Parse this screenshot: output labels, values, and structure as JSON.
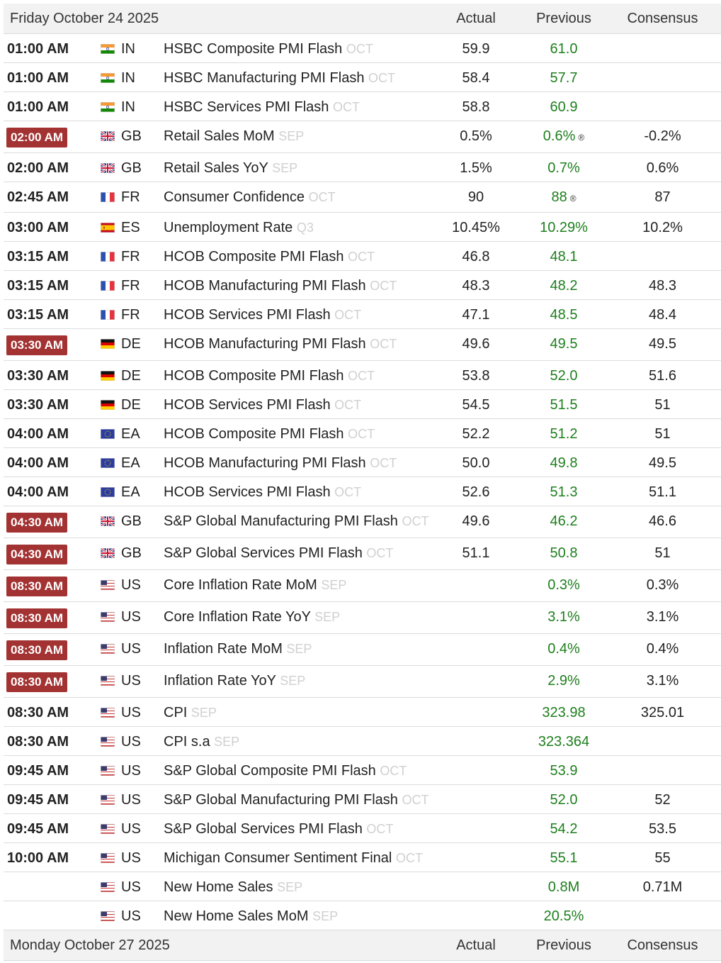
{
  "days": [
    {
      "date": "Friday October 24 2025",
      "columns": [
        "Actual",
        "Previous",
        "Consensus"
      ],
      "rows": [
        {
          "time": "01:00 AM",
          "country": "IN",
          "event": "HSBC Composite PMI Flash",
          "period": "OCT",
          "actual": "59.9",
          "previous": "61.0"
        },
        {
          "time": "01:00 AM",
          "country": "IN",
          "event": "HSBC Manufacturing PMI Flash",
          "period": "OCT",
          "actual": "58.4",
          "previous": "57.7"
        },
        {
          "time": "01:00 AM",
          "country": "IN",
          "event": "HSBC Services PMI Flash",
          "period": "OCT",
          "actual": "58.8",
          "previous": "60.9"
        },
        {
          "time": "02:00 AM",
          "highlight": true,
          "country": "GB",
          "event": "Retail Sales MoM",
          "period": "SEP",
          "actual": "0.5%",
          "previous": "0.6%",
          "revised_mark": "®",
          "consensus": "-0.2%"
        },
        {
          "time": "02:00 AM",
          "country": "GB",
          "event": "Retail Sales YoY",
          "period": "SEP",
          "actual": "1.5%",
          "previous": "0.7%",
          "consensus": "0.6%"
        },
        {
          "time": "02:45 AM",
          "country": "FR",
          "event": "Consumer Confidence",
          "period": "OCT",
          "actual": "90",
          "previous": "88",
          "revised_mark": "®",
          "consensus": "87"
        },
        {
          "time": "03:00 AM",
          "country": "ES",
          "event": "Unemployment Rate",
          "period": "Q3",
          "actual": "10.45%",
          "previous": "10.29%",
          "consensus": "10.2%"
        },
        {
          "time": "03:15 AM",
          "country": "FR",
          "event": "HCOB Composite PMI Flash",
          "period": "OCT",
          "actual": "46.8",
          "previous": "48.1"
        },
        {
          "time": "03:15 AM",
          "country": "FR",
          "event": "HCOB Manufacturing PMI Flash",
          "period": "OCT",
          "actual": "48.3",
          "previous": "48.2",
          "consensus": "48.3"
        },
        {
          "time": "03:15 AM",
          "country": "FR",
          "event": "HCOB Services PMI Flash",
          "period": "OCT",
          "actual": "47.1",
          "previous": "48.5",
          "consensus": "48.4"
        },
        {
          "time": "03:30 AM",
          "highlight": true,
          "country": "DE",
          "event": "HCOB Manufacturing PMI Flash",
          "period": "OCT",
          "actual": "49.6",
          "previous": "49.5",
          "consensus": "49.5"
        },
        {
          "time": "03:30 AM",
          "country": "DE",
          "event": "HCOB Composite PMI Flash",
          "period": "OCT",
          "actual": "53.8",
          "previous": "52.0",
          "consensus": "51.6"
        },
        {
          "time": "03:30 AM",
          "country": "DE",
          "event": "HCOB Services PMI Flash",
          "period": "OCT",
          "actual": "54.5",
          "previous": "51.5",
          "consensus": "51"
        },
        {
          "time": "04:00 AM",
          "country": "EA",
          "event": "HCOB Composite PMI Flash",
          "period": "OCT",
          "actual": "52.2",
          "previous": "51.2",
          "consensus": "51"
        },
        {
          "time": "04:00 AM",
          "country": "EA",
          "event": "HCOB Manufacturing PMI Flash",
          "period": "OCT",
          "actual": "50.0",
          "previous": "49.8",
          "consensus": "49.5"
        },
        {
          "time": "04:00 AM",
          "country": "EA",
          "event": "HCOB Services PMI Flash",
          "period": "OCT",
          "actual": "52.6",
          "previous": "51.3",
          "consensus": "51.1"
        },
        {
          "time": "04:30 AM",
          "highlight": true,
          "country": "GB",
          "event": "S&P Global Manufacturing PMI Flash",
          "period": "OCT",
          "actual": "49.6",
          "previous": "46.2",
          "consensus": "46.6"
        },
        {
          "time": "04:30 AM",
          "highlight": true,
          "country": "GB",
          "event": "S&P Global Services PMI Flash",
          "period": "OCT",
          "actual": "51.1",
          "previous": "50.8",
          "consensus": "51"
        },
        {
          "time": "08:30 AM",
          "highlight": true,
          "country": "US",
          "event": "Core Inflation Rate MoM",
          "period": "SEP",
          "previous": "0.3%",
          "consensus": "0.3%"
        },
        {
          "time": "08:30 AM",
          "highlight": true,
          "country": "US",
          "event": "Core Inflation Rate YoY",
          "period": "SEP",
          "previous": "3.1%",
          "consensus": "3.1%"
        },
        {
          "time": "08:30 AM",
          "highlight": true,
          "country": "US",
          "event": "Inflation Rate MoM",
          "period": "SEP",
          "previous": "0.4%",
          "consensus": "0.4%"
        },
        {
          "time": "08:30 AM",
          "highlight": true,
          "country": "US",
          "event": "Inflation Rate YoY",
          "period": "SEP",
          "previous": "2.9%",
          "consensus": "3.1%"
        },
        {
          "time": "08:30 AM",
          "country": "US",
          "event": "CPI",
          "period": "SEP",
          "previous": "323.98",
          "consensus": "325.01"
        },
        {
          "time": "08:30 AM",
          "country": "US",
          "event": "CPI s.a",
          "period": "SEP",
          "previous": "323.364"
        },
        {
          "time": "09:45 AM",
          "country": "US",
          "event": "S&P Global Composite PMI Flash",
          "period": "OCT",
          "previous": "53.9"
        },
        {
          "time": "09:45 AM",
          "country": "US",
          "event": "S&P Global Manufacturing PMI Flash",
          "period": "OCT",
          "previous": "52.0",
          "consensus": "52"
        },
        {
          "time": "09:45 AM",
          "country": "US",
          "event": "S&P Global Services PMI Flash",
          "period": "OCT",
          "previous": "54.2",
          "consensus": "53.5"
        },
        {
          "time": "10:00 AM",
          "country": "US",
          "event": "Michigan Consumer Sentiment Final",
          "period": "OCT",
          "previous": "55.1",
          "consensus": "55"
        },
        {
          "country": "US",
          "event": "New Home Sales",
          "period": "SEP",
          "previous": "0.8M",
          "consensus": "0.71M"
        },
        {
          "country": "US",
          "event": "New Home Sales MoM",
          "period": "SEP",
          "previous": "20.5%"
        }
      ]
    },
    {
      "date": "Monday October 27 2025",
      "columns": [
        "Actual",
        "Previous",
        "Consensus"
      ]
    }
  ]
}
